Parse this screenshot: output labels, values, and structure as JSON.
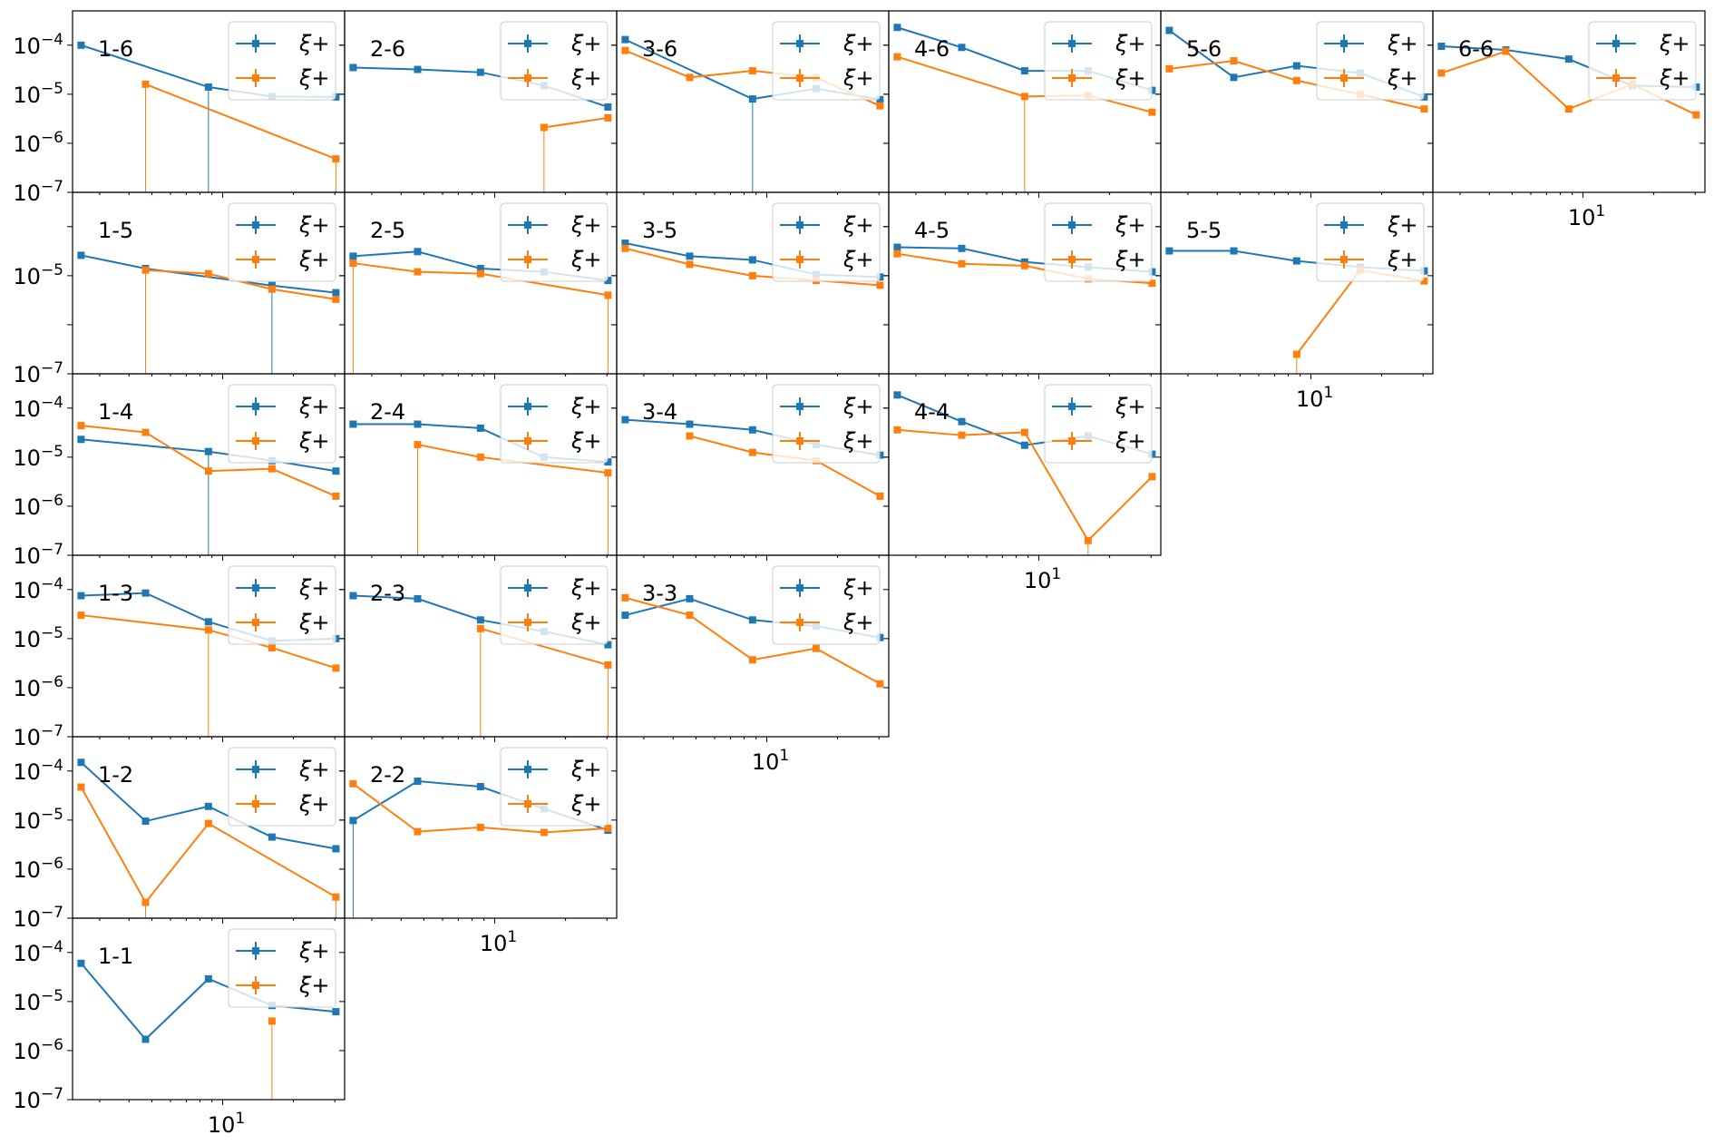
{
  "chart_data": {
    "type": "line",
    "layout": "lower-triangular grid of 21 subplots, shared log-log axes, empty upper-right cells",
    "x_scale": "log",
    "y_scale": "log",
    "xlim": [
      2.3,
      33
    ],
    "ylim": [
      1e-07,
      0.0005
    ],
    "x_tick_label": "10^1",
    "y_tick_labels": [
      "10^-4",
      "10^-5",
      "10^-6",
      "10^-7"
    ],
    "x_tick_labels_shown_under": [
      "1-1",
      "2-2",
      "3-3",
      "4-4",
      "5-5",
      "6-6"
    ],
    "y_tick_labels_pattern": "all four decades on rows 1-6, 1-4, 1-3, 1-2, 1-1; only 10^-5 and 10^-7 on row 1-5",
    "legend_placement": "upper right of every panel",
    "x": [
      2.5,
      4.7,
      8.7,
      16.2,
      30.3
    ],
    "series": [
      {
        "name": "ξ+",
        "color": "#1f77b4"
      },
      {
        "name": "ξ+",
        "color": "#ff7f0e"
      }
    ],
    "panels": [
      {
        "label": "1-6",
        "values": [
          [
            0.0001,
            null,
            1.4e-05,
            9e-06,
            8.8e-06
          ],
          [
            null,
            1.6e-05,
            null,
            null,
            4.8e-07
          ]
        ]
      },
      {
        "label": "2-6",
        "values": [
          [
            3.5e-05,
            3.2e-05,
            2.8e-05,
            1.5e-05,
            5.5e-06
          ],
          [
            null,
            null,
            null,
            2.1e-06,
            3.3e-06
          ]
        ]
      },
      {
        "label": "3-6",
        "values": [
          [
            0.00013,
            null,
            8e-06,
            1.3e-05,
            7.8e-06
          ],
          [
            7.8e-05,
            2.2e-05,
            3e-05,
            2.2e-05,
            5.8e-06
          ]
        ]
      },
      {
        "label": "4-6",
        "values": [
          [
            0.00023,
            9e-05,
            3e-05,
            3e-05,
            1.2e-05
          ],
          [
            5.8e-05,
            null,
            9e-06,
            9.5e-06,
            4.3e-06
          ]
        ]
      },
      {
        "label": "5-6",
        "values": [
          [
            0.0002,
            2.2e-05,
            3.8e-05,
            2.7e-05,
            8.8e-06
          ],
          [
            3.3e-05,
            4.8e-05,
            1.9e-05,
            1e-05,
            5e-06
          ]
        ]
      },
      {
        "label": "6-6",
        "values": [
          [
            9.5e-05,
            8e-05,
            5.2e-05,
            1.5e-05,
            1.4e-05
          ],
          [
            2.7e-05,
            7.5e-05,
            5e-06,
            1.6e-05,
            3.8e-06
          ]
        ]
      },
      {
        "label": "1-5",
        "values": [
          [
            2.6e-05,
            1.4e-05,
            null,
            6.3e-06,
            4.5e-06
          ],
          [
            null,
            1.3e-05,
            1.1e-05,
            5.3e-06,
            3.3e-06
          ]
        ]
      },
      {
        "label": "2-5",
        "values": [
          [
            2.5e-05,
            3.1e-05,
            1.4e-05,
            1.2e-05,
            8e-06
          ],
          [
            1.8e-05,
            1.2e-05,
            1.1e-05,
            null,
            4e-06
          ]
        ]
      },
      {
        "label": "3-5",
        "values": [
          [
            4.6e-05,
            2.5e-05,
            2.1e-05,
            1.06e-05,
            9.4e-06
          ],
          [
            3.6e-05,
            1.7e-05,
            1e-05,
            8e-06,
            6.4e-06
          ]
        ]
      },
      {
        "label": "4-5",
        "values": [
          [
            3.8e-05,
            3.6e-05,
            1.9e-05,
            1.5e-05,
            1.2e-05
          ],
          [
            2.8e-05,
            1.75e-05,
            1.6e-05,
            8.6e-06,
            7e-06
          ]
        ]
      },
      {
        "label": "5-5",
        "values": [
          [
            3.2e-05,
            3.2e-05,
            2e-05,
            1.5e-05,
            1.25e-05
          ],
          [
            null,
            null,
            2.5e-07,
            1.3e-05,
            7.8e-06
          ]
        ]
      },
      {
        "label": "1-4",
        "values": [
          [
            2.3e-05,
            null,
            1.3e-05,
            8.5e-06,
            5.2e-06
          ],
          [
            4.4e-05,
            3.2e-05,
            5.2e-06,
            5.8e-06,
            1.6e-06
          ]
        ]
      },
      {
        "label": "2-4",
        "values": [
          [
            4.7e-05,
            4.7e-05,
            3.9e-05,
            1e-05,
            8e-06
          ],
          [
            null,
            1.8e-05,
            1e-05,
            null,
            4.8e-06
          ]
        ]
      },
      {
        "label": "3-4",
        "values": [
          [
            5.8e-05,
            4.7e-05,
            3.6e-05,
            1.8e-05,
            1.1e-05
          ],
          [
            null,
            2.7e-05,
            1.25e-05,
            8.5e-06,
            1.6e-06
          ]
        ]
      },
      {
        "label": "4-4",
        "values": [
          [
            0.000185,
            5.3e-05,
            1.75e-05,
            2.7e-05,
            1.15e-05
          ],
          [
            3.6e-05,
            2.8e-05,
            3.2e-05,
            2e-07,
            4e-06
          ]
        ]
      },
      {
        "label": "1-3",
        "values": [
          [
            7.5e-05,
            8.5e-05,
            2.2e-05,
            9e-06,
            1e-05
          ],
          [
            3e-05,
            null,
            1.5e-05,
            6.5e-06,
            2.5e-06
          ]
        ]
      },
      {
        "label": "2-3",
        "values": [
          [
            7.5e-05,
            6.5e-05,
            2.4e-05,
            1.4e-05,
            7.5e-06
          ],
          [
            null,
            null,
            1.6e-05,
            null,
            2.9e-06
          ]
        ]
      },
      {
        "label": "3-3",
        "values": [
          [
            3e-05,
            6.5e-05,
            2.4e-05,
            1.8e-05,
            1.05e-05
          ],
          [
            6.8e-05,
            3e-05,
            3.7e-06,
            6.3e-06,
            1.2e-06
          ]
        ]
      },
      {
        "label": "1-2",
        "values": [
          [
            0.00015,
            9.5e-06,
            1.9e-05,
            4.5e-06,
            2.6e-06
          ],
          [
            4.7e-05,
            2.1e-07,
            8.5e-06,
            null,
            2.7e-07
          ]
        ]
      },
      {
        "label": "2-2",
        "values": [
          [
            9.8e-06,
            6.2e-05,
            4.8e-05,
            1.7e-05,
            6.2e-06
          ],
          [
            5.5e-05,
            5.8e-06,
            7.1e-06,
            5.6e-06,
            6.8e-06
          ]
        ]
      },
      {
        "label": "1-1",
        "values": [
          [
            6e-05,
            1.7e-06,
            2.9e-05,
            8.3e-06,
            6.2e-06
          ],
          [
            null,
            null,
            null,
            4e-06,
            null
          ]
        ]
      }
    ]
  }
}
